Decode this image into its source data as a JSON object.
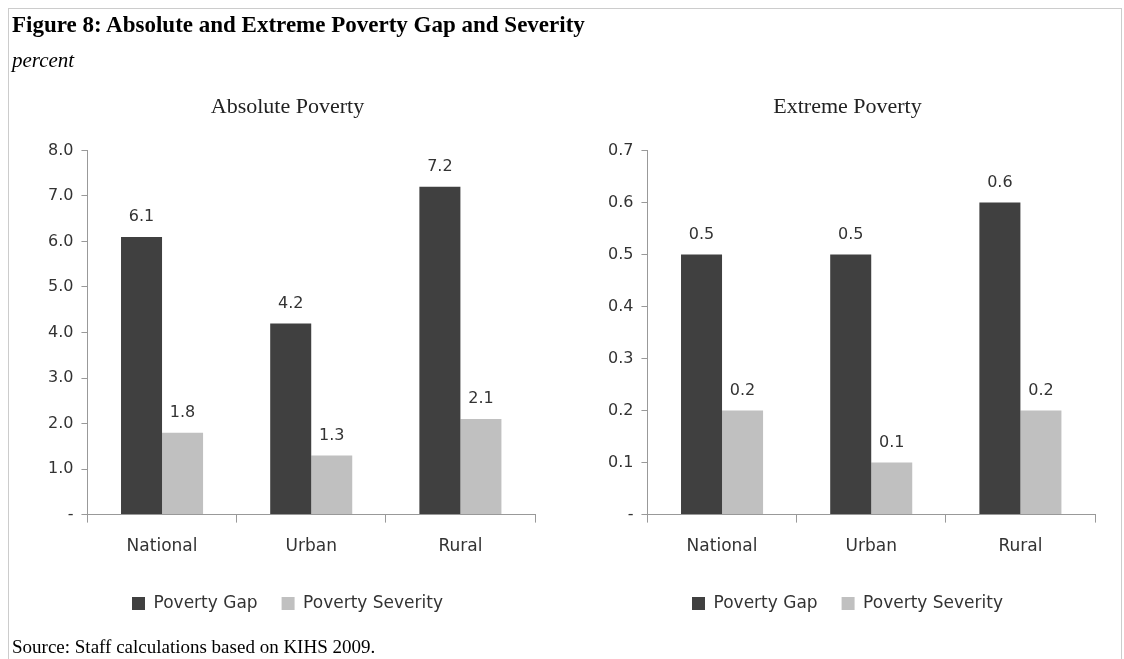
{
  "chart_data": [
    {
      "type": "bar",
      "title": "Absolute Poverty",
      "categories": [
        "National",
        "Urban",
        "Rural"
      ],
      "series": [
        {
          "name": "Poverty Gap",
          "color": "#404040",
          "values": [
            6.1,
            4.2,
            7.2
          ]
        },
        {
          "name": "Poverty Severity",
          "color": "#c0c0c0",
          "values": [
            1.8,
            1.3,
            2.1
          ]
        }
      ],
      "ylim": [
        0,
        8
      ],
      "yticks": [
        {
          "value": 0,
          "label": "-"
        },
        {
          "value": 1,
          "label": "1.0"
        },
        {
          "value": 2,
          "label": "2.0"
        },
        {
          "value": 3,
          "label": "3.0"
        },
        {
          "value": 4,
          "label": "4.0"
        },
        {
          "value": 5,
          "label": "5.0"
        },
        {
          "value": 6,
          "label": "6.0"
        },
        {
          "value": 7,
          "label": "7.0"
        },
        {
          "value": 8,
          "label": "8.0"
        }
      ],
      "data_labels": true,
      "legend": "bottom",
      "grid": false,
      "annotations": [
        "Figure 8: Absolute and Extreme Poverty Gap and Severity",
        "percent",
        "Source: Staff calculations based on KIHS 2009."
      ]
    },
    {
      "type": "bar",
      "title": "Extreme Poverty",
      "categories": [
        "National",
        "Urban",
        "Rural"
      ],
      "series": [
        {
          "name": "Poverty Gap",
          "color": "#404040",
          "values": [
            0.5,
            0.5,
            0.6
          ]
        },
        {
          "name": "Poverty Severity",
          "color": "#c0c0c0",
          "values": [
            0.2,
            0.1,
            0.2
          ]
        }
      ],
      "ylim": [
        0,
        0.7
      ],
      "yticks": [
        {
          "value": 0,
          "label": "-"
        },
        0.1,
        0.2,
        0.3,
        0.4,
        0.5,
        0.6,
        0.7
      ],
      "data_labels": true,
      "legend": "bottom",
      "grid": false
    }
  ]
}
